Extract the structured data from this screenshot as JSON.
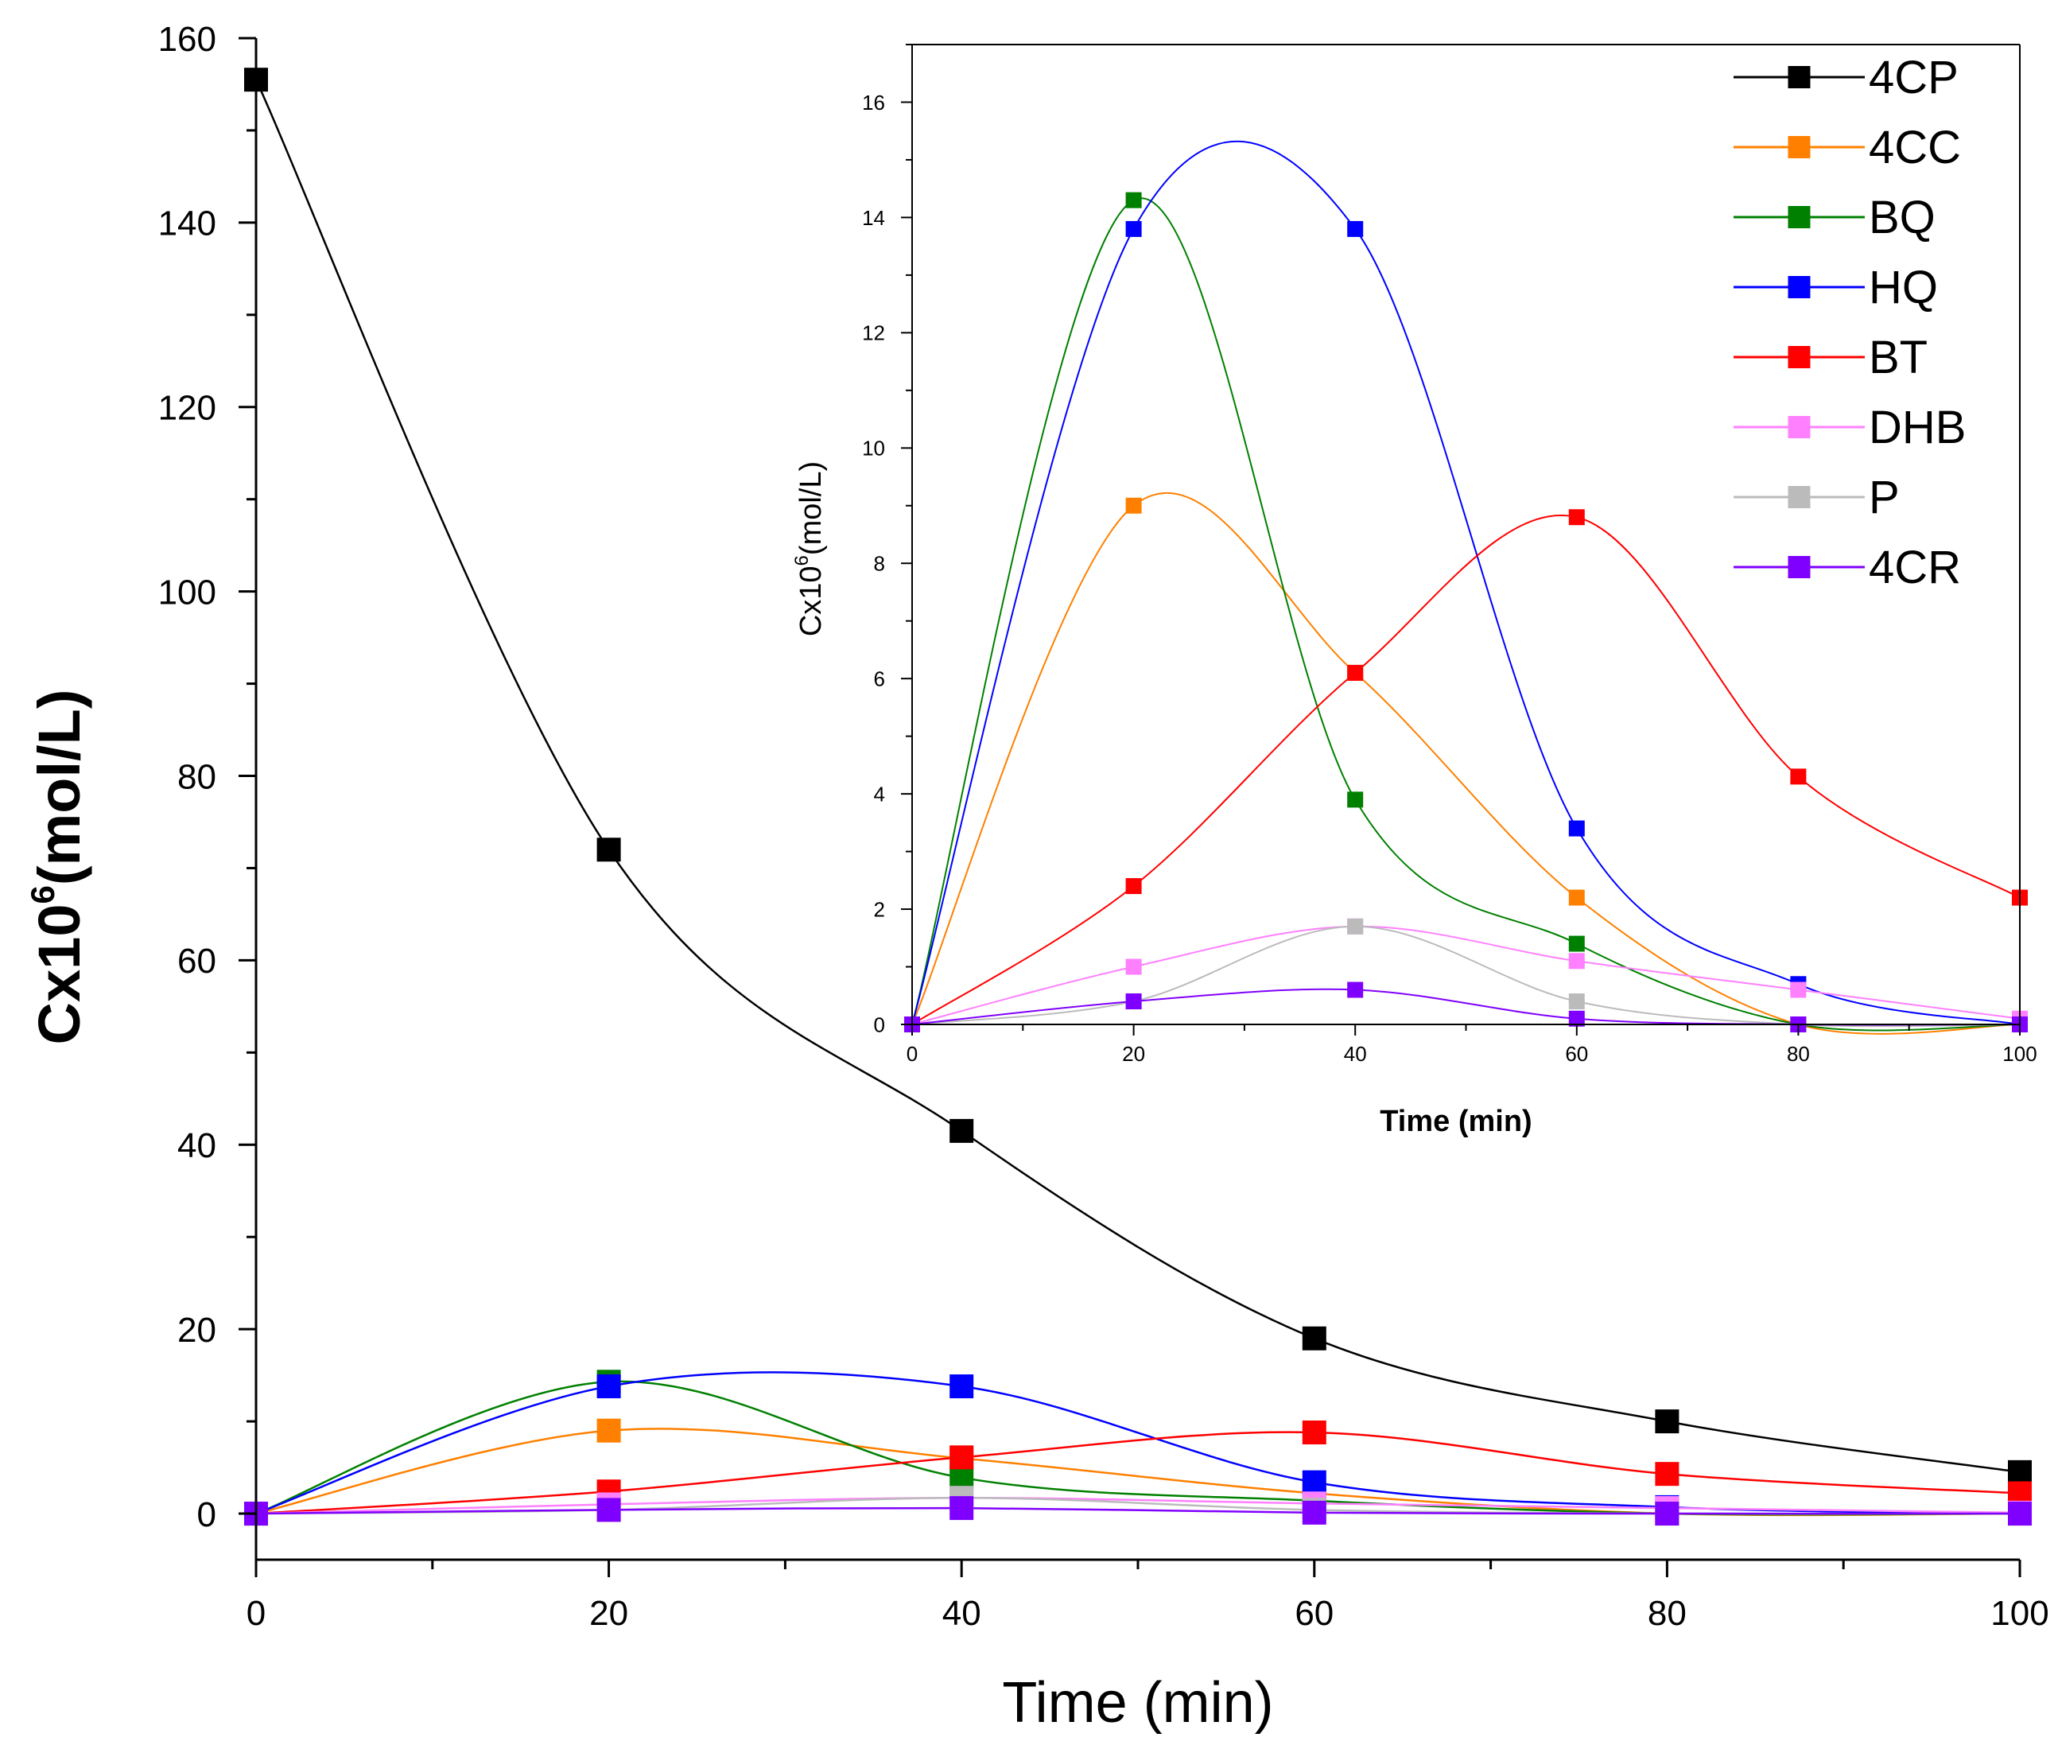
{
  "series_names": [
    "4CP",
    "4CC",
    "BQ",
    "HQ",
    "BT",
    "DHB",
    "P",
    "4CR"
  ],
  "colors": {
    "4CP": "#000000",
    "4CC": "#FF8000",
    "BQ": "#008000",
    "HQ": "#0000FF",
    "BT": "#FF0000",
    "DHB": "#FF80FF",
    "P": "#BBBBBB",
    "4CR": "#8000FF"
  },
  "chart_data": [
    {
      "id": "main",
      "type": "line",
      "title": "",
      "xlabel": "Time (min)",
      "ylabel_main": "Cx10",
      "ylabel_sup": "6",
      "ylabel_unit": "(mol/L)",
      "xlim": [
        0,
        100
      ],
      "ylim": [
        -5,
        160
      ],
      "xticks": [
        0,
        20,
        40,
        60,
        80,
        100
      ],
      "yticks": [
        0,
        20,
        40,
        60,
        80,
        100,
        120,
        140,
        160
      ],
      "x": [
        0,
        20,
        40,
        60,
        80,
        100
      ],
      "series": [
        {
          "name": "4CP",
          "values": [
            155.5,
            72,
            41.5,
            19,
            10,
            4.5
          ]
        },
        {
          "name": "4CC",
          "values": [
            0,
            9,
            6,
            2.2,
            0,
            0
          ]
        },
        {
          "name": "BQ",
          "values": [
            0,
            14.3,
            3.9,
            1.4,
            0,
            0
          ]
        },
        {
          "name": "HQ",
          "values": [
            0,
            13.8,
            13.8,
            3.4,
            0.7,
            0
          ]
        },
        {
          "name": "BT",
          "values": [
            0,
            2.4,
            6.1,
            8.8,
            4.3,
            2.2
          ]
        },
        {
          "name": "DHB",
          "values": [
            0,
            1.0,
            1.7,
            1.1,
            0.6,
            0.1
          ]
        },
        {
          "name": "P",
          "values": [
            0,
            0.4,
            1.7,
            0.4,
            0,
            0
          ]
        },
        {
          "name": "4CR",
          "values": [
            0,
            0.4,
            0.6,
            0.1,
            0,
            0
          ]
        }
      ]
    },
    {
      "id": "inset",
      "type": "line",
      "title": "",
      "xlabel": "Time (min)",
      "ylabel_main": "Cx10",
      "ylabel_sup": "6",
      "ylabel_unit": "(mol/L)",
      "xlim": [
        0,
        100
      ],
      "ylim": [
        0,
        17
      ],
      "xticks": [
        0,
        20,
        40,
        60,
        80,
        100
      ],
      "yticks": [
        0,
        2,
        4,
        6,
        8,
        10,
        12,
        14,
        16
      ],
      "legend_position": "top-right",
      "x": [
        0,
        20,
        40,
        60,
        80,
        100
      ],
      "series": [
        {
          "name": "4CC",
          "values": [
            0,
            9.0,
            6.1,
            2.2,
            0,
            0
          ]
        },
        {
          "name": "BQ",
          "values": [
            0,
            14.3,
            3.9,
            1.4,
            0,
            0
          ]
        },
        {
          "name": "HQ",
          "values": [
            0,
            13.8,
            13.8,
            3.4,
            0.7,
            0
          ]
        },
        {
          "name": "BT",
          "values": [
            0,
            2.4,
            6.1,
            8.8,
            4.3,
            2.2
          ]
        },
        {
          "name": "DHB",
          "values": [
            0,
            1.0,
            1.7,
            1.1,
            0.6,
            0.1
          ]
        },
        {
          "name": "P",
          "values": [
            0,
            0.4,
            1.7,
            0.4,
            0,
            0
          ]
        },
        {
          "name": "4CR",
          "values": [
            0,
            0.4,
            0.6,
            0.1,
            0,
            0
          ]
        }
      ]
    }
  ]
}
